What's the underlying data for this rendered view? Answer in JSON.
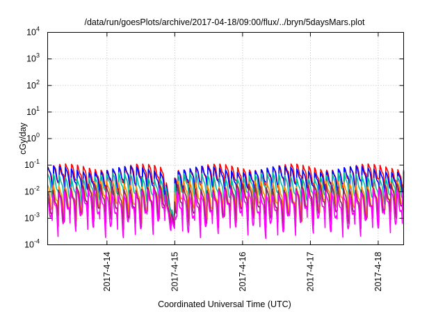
{
  "chart_data": {
    "type": "line",
    "title": "/data/run/goesPlots/archive/2017-04-18/09:00/flux/../bryn/5daysMars.plot",
    "xlabel": "Coordinated Universal Time (UTC)",
    "ylabel": "cGy/day",
    "yscale": "log",
    "ylim": [
      0.0001,
      10000
    ],
    "y_ticks": [
      {
        "base": "10",
        "exp": "-4",
        "value": 0.0001
      },
      {
        "base": "10",
        "exp": "-3",
        "value": 0.001
      },
      {
        "base": "10",
        "exp": "-2",
        "value": 0.01
      },
      {
        "base": "10",
        "exp": "-1",
        "value": 0.1
      },
      {
        "base": "10",
        "exp": "0",
        "value": 1
      },
      {
        "base": "10",
        "exp": "1",
        "value": 10
      },
      {
        "base": "10",
        "exp": "2",
        "value": 100
      },
      {
        "base": "10",
        "exp": "3",
        "value": 1000
      },
      {
        "base": "10",
        "exp": "4",
        "value": 10000
      }
    ],
    "xlim": [
      "2017-04-13T03:00",
      "2017-04-18T09:00"
    ],
    "x_ticks": [
      {
        "label": "2017-4-14",
        "value": "2017-04-14T00:00"
      },
      {
        "label": "2017-4-15",
        "value": "2017-04-15T00:00"
      },
      {
        "label": "2017-4-16",
        "value": "2017-04-16T00:00"
      },
      {
        "label": "2017-4-17",
        "value": "2017-04-17T00:00"
      },
      {
        "label": "2017-4-18",
        "value": "2017-04-18T00:00"
      }
    ],
    "grid": true,
    "legend": "none",
    "series": [
      {
        "color": "#ff0000",
        "level": 0.085,
        "dip": 0.9,
        "spread": 0.25,
        "end_event": 0.0006
      },
      {
        "color": "#0000ff",
        "level": 0.07,
        "dip": 0.85,
        "spread": 0.2,
        "end_event": 0.0005
      },
      {
        "color": "#00c0a0",
        "level": 0.04,
        "dip": 1.0,
        "spread": 0.2,
        "end_event": 0.0008
      },
      {
        "color": "#ff8c00",
        "level": 0.02,
        "dip": 1.15,
        "spread": 0.25,
        "end_event": 0.0005
      },
      {
        "color": "#8b2252",
        "level": 0.015,
        "dip": 1.25,
        "spread": 0.25,
        "end_event": 0.0005
      },
      {
        "color": "#ff00ff",
        "level": 0.01,
        "dip": 1.35,
        "spread": 0.3,
        "end_event": 0.0004
      }
    ],
    "oscillation_period_hours": 2.1,
    "event": {
      "start": "2017-04-14T20:00",
      "end": "2017-04-15T00:00"
    }
  }
}
